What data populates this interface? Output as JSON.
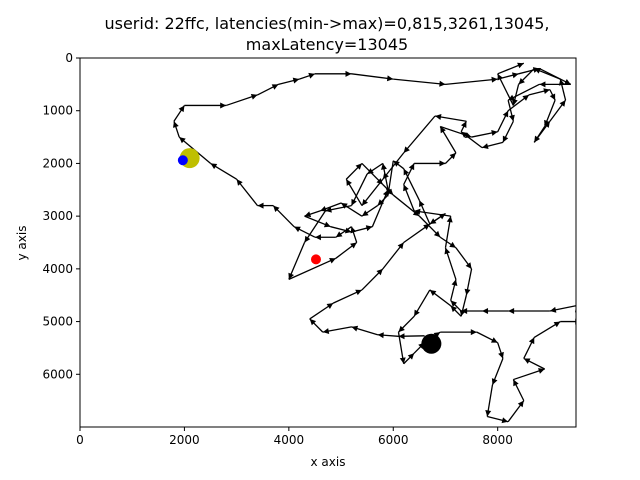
{
  "chart_data": {
    "type": "scatter",
    "title_lines": [
      "userid: 22ffc, latencies(min->max)=0,815,3261,13045,",
      "maxLatency=13045"
    ],
    "xlabel": "x axis",
    "ylabel": "y axis",
    "xlim": [
      0,
      9500
    ],
    "ylim": [
      7000,
      0
    ],
    "y_inverted": true,
    "grid": false,
    "legend": "none",
    "xticks": [
      0,
      2000,
      4000,
      6000,
      8000
    ],
    "yticks": [
      0,
      1000,
      2000,
      3000,
      4000,
      5000,
      6000
    ],
    "path": {
      "color": "#000000",
      "points": [
        [
          6600,
          5270
        ],
        [
          6100,
          5280
        ],
        [
          5700,
          5250
        ],
        [
          5200,
          5100
        ],
        [
          4650,
          5200
        ],
        [
          4400,
          4950
        ],
        [
          4850,
          4650
        ],
        [
          5400,
          4400
        ],
        [
          5800,
          4000
        ],
        [
          6200,
          3500
        ],
        [
          6700,
          3150
        ],
        [
          7000,
          2950
        ],
        [
          6700,
          3150
        ],
        [
          6500,
          2700
        ],
        [
          6200,
          2100
        ],
        [
          6000,
          1950
        ],
        [
          5900,
          2600
        ],
        [
          5700,
          2800
        ],
        [
          5400,
          3000
        ],
        [
          5000,
          2750
        ],
        [
          4600,
          2900
        ],
        [
          4300,
          3000
        ],
        [
          4800,
          3200
        ],
        [
          5200,
          3300
        ],
        [
          5600,
          3200
        ],
        [
          5900,
          2500
        ],
        [
          5800,
          2000
        ],
        [
          5500,
          2200
        ],
        [
          5200,
          2800
        ],
        [
          4700,
          2900
        ],
        [
          4300,
          3500
        ],
        [
          4000,
          4200
        ],
        [
          4900,
          3800
        ],
        [
          5300,
          3500
        ],
        [
          5200,
          3200
        ],
        [
          4900,
          3400
        ],
        [
          4500,
          3400
        ],
        [
          4100,
          3200
        ],
        [
          3700,
          2800
        ],
        [
          3400,
          2800
        ],
        [
          3000,
          2300
        ],
        [
          2500,
          2000
        ],
        [
          1900,
          1500
        ],
        [
          1800,
          1200
        ],
        [
          2000,
          900
        ],
        [
          2800,
          900
        ],
        [
          3400,
          700
        ],
        [
          3800,
          500
        ],
        [
          4200,
          400
        ],
        [
          4500,
          300
        ],
        [
          5200,
          300
        ],
        [
          6000,
          400
        ],
        [
          7000,
          500
        ],
        [
          8000,
          400
        ],
        [
          8400,
          300
        ],
        [
          8800,
          200
        ],
        [
          9400,
          500
        ],
        [
          8800,
          500
        ],
        [
          8200,
          800
        ],
        [
          8300,
          1200
        ],
        [
          8100,
          1600
        ],
        [
          7700,
          1700
        ],
        [
          7300,
          1400
        ],
        [
          7400,
          1200
        ],
        [
          6800,
          1100
        ],
        [
          6200,
          1800
        ],
        [
          5800,
          2300
        ],
        [
          5400,
          2800
        ],
        [
          5100,
          2300
        ],
        [
          5400,
          2000
        ],
        [
          5800,
          2400
        ],
        [
          6000,
          2600
        ],
        [
          6500,
          3000
        ],
        [
          6900,
          3400
        ],
        [
          7200,
          3600
        ],
        [
          7500,
          4000
        ],
        [
          7400,
          4500
        ],
        [
          7300,
          4900
        ],
        [
          7100,
          4700
        ],
        [
          6700,
          4400
        ],
        [
          6400,
          4900
        ],
        [
          6100,
          5200
        ],
        [
          6200,
          5800
        ],
        [
          6400,
          5600
        ],
        [
          6600,
          5400
        ],
        [
          6900,
          5200
        ],
        [
          7600,
          5200
        ],
        [
          8000,
          5400
        ],
        [
          8100,
          5700
        ],
        [
          7900,
          6200
        ],
        [
          7800,
          6800
        ],
        [
          8200,
          6900
        ],
        [
          8500,
          6500
        ],
        [
          8300,
          6100
        ],
        [
          8900,
          5900
        ],
        [
          8500,
          5700
        ],
        [
          8700,
          5300
        ],
        [
          9200,
          5000
        ],
        [
          9600,
          5000
        ],
        [
          9500,
          4700
        ],
        [
          9000,
          4800
        ],
        [
          8200,
          4800
        ],
        [
          7700,
          4800
        ],
        [
          7300,
          4800
        ],
        [
          7100,
          4600
        ],
        [
          7200,
          4200
        ],
        [
          7000,
          3600
        ],
        [
          7100,
          3000
        ],
        [
          6400,
          2900
        ],
        [
          6200,
          2400
        ],
        [
          6400,
          2000
        ],
        [
          7000,
          2000
        ],
        [
          7200,
          1800
        ],
        [
          6900,
          1300
        ],
        [
          7500,
          1500
        ],
        [
          8000,
          1400
        ],
        [
          8200,
          1000
        ],
        [
          8600,
          700
        ],
        [
          9000,
          600
        ],
        [
          9100,
          800
        ],
        [
          8900,
          1300
        ],
        [
          8700,
          1600
        ],
        [
          9000,
          1200
        ],
        [
          9300,
          800
        ],
        [
          9200,
          400
        ],
        [
          8700,
          200
        ],
        [
          8400,
          500
        ],
        [
          8300,
          900
        ],
        [
          8000,
          300
        ],
        [
          8500,
          100
        ]
      ]
    },
    "markers": [
      {
        "name": "yellow",
        "x": 2100,
        "y": 1900,
        "color": "#bfbf00",
        "r": 10
      },
      {
        "name": "blue",
        "x": 1970,
        "y": 1940,
        "color": "#0000ff",
        "r": 5
      },
      {
        "name": "red",
        "x": 4520,
        "y": 3820,
        "color": "#ff0000",
        "r": 5
      },
      {
        "name": "black",
        "x": 6730,
        "y": 5420,
        "color": "#000000",
        "r": 10
      }
    ]
  }
}
